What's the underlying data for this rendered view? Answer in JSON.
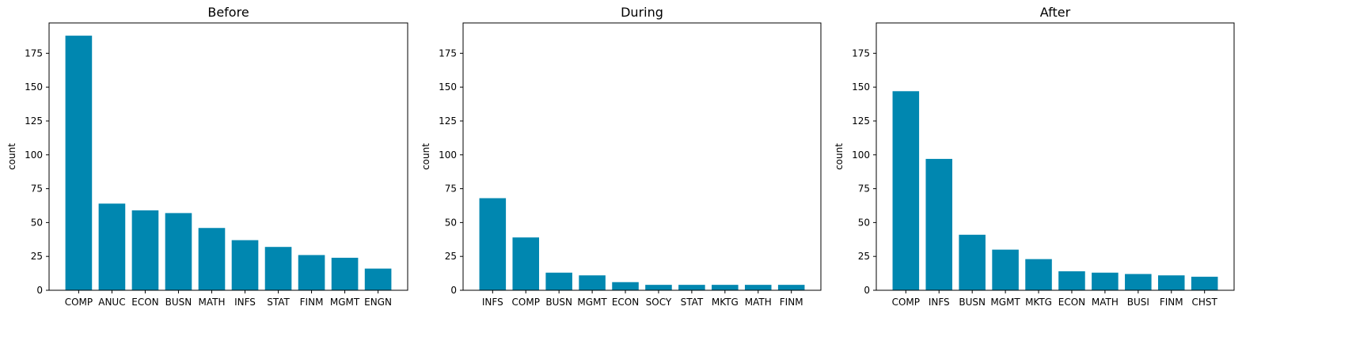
{
  "colors": {
    "bar": "#0087B0",
    "axis": "#000000",
    "background": "#ffffff"
  },
  "chart_data": [
    {
      "type": "bar",
      "title": "Before",
      "xlabel": "",
      "ylabel": "count",
      "ylim": [
        0,
        197.4
      ],
      "yticks": [
        0,
        25,
        50,
        75,
        100,
        125,
        150,
        175
      ],
      "grid": false,
      "categories": [
        "COMP",
        "ANUC",
        "ECON",
        "BUSN",
        "MATH",
        "INFS",
        "STAT",
        "FINM",
        "MGMT",
        "ENGN"
      ],
      "values": [
        188,
        64,
        59,
        57,
        46,
        37,
        32,
        26,
        24,
        16
      ]
    },
    {
      "type": "bar",
      "title": "During",
      "xlabel": "",
      "ylabel": "count",
      "ylim": [
        0,
        197.4
      ],
      "yticks": [
        0,
        25,
        50,
        75,
        100,
        125,
        150,
        175
      ],
      "grid": false,
      "categories": [
        "INFS",
        "COMP",
        "BUSN",
        "MGMT",
        "ECON",
        "SOCY",
        "STAT",
        "MKTG",
        "MATH",
        "FINM"
      ],
      "values": [
        68,
        39,
        13,
        11,
        6,
        4,
        4,
        4,
        4,
        4
      ]
    },
    {
      "type": "bar",
      "title": "After",
      "xlabel": "",
      "ylabel": "count",
      "ylim": [
        0,
        197.4
      ],
      "yticks": [
        0,
        25,
        50,
        75,
        100,
        125,
        150,
        175
      ],
      "grid": false,
      "categories": [
        "COMP",
        "INFS",
        "BUSN",
        "MGMT",
        "MKTG",
        "ECON",
        "MATH",
        "BUSI",
        "FINM",
        "CHST"
      ],
      "values": [
        147,
        97,
        41,
        30,
        23,
        14,
        13,
        12,
        11,
        10
      ]
    }
  ]
}
